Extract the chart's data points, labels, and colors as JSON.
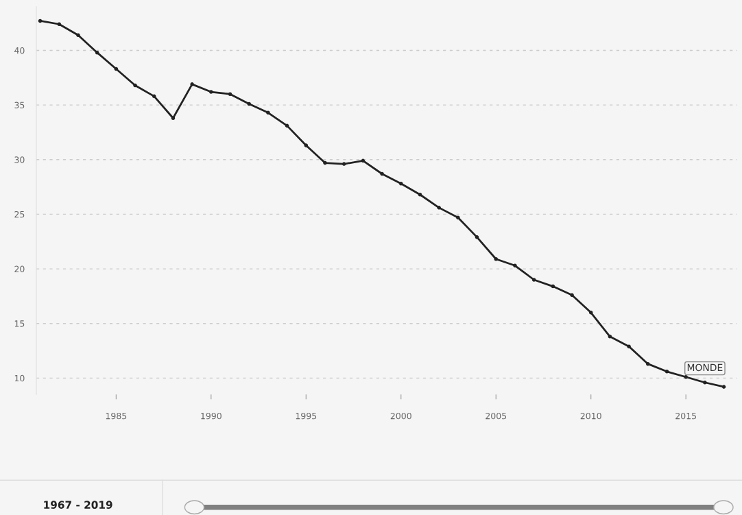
{
  "chart_data": {
    "type": "line",
    "x": [
      1981,
      1982,
      1983,
      1984,
      1985,
      1986,
      1987,
      1988,
      1989,
      1990,
      1991,
      1992,
      1993,
      1994,
      1995,
      1996,
      1997,
      1998,
      1999,
      2000,
      2001,
      2002,
      2003,
      2004,
      2005,
      2006,
      2007,
      2008,
      2009,
      2010,
      2011,
      2012,
      2013,
      2014,
      2015,
      2016,
      2017
    ],
    "series": [
      {
        "color": "#222222",
        "values": [
          42.7,
          42.4,
          41.4,
          39.8,
          38.3,
          36.8,
          35.8,
          33.8,
          36.9,
          36.2,
          36.0,
          35.1,
          34.3,
          33.1,
          31.3,
          29.7,
          29.6,
          29.9,
          28.7,
          27.8,
          26.8,
          25.6,
          24.7,
          22.9,
          20.9,
          20.3,
          19.0,
          18.4,
          17.6,
          16.0,
          13.8,
          12.9,
          11.3,
          10.6,
          10.1,
          9.6,
          9.2
        ]
      }
    ],
    "xlim": [
      1980.8,
      2017.7
    ],
    "ylim": [
      8.5,
      44
    ],
    "xticks": [
      1985,
      1990,
      1995,
      2000,
      2005,
      2010,
      2015
    ],
    "yticks": [
      10,
      15,
      20,
      25,
      30,
      35,
      40
    ],
    "grid": "y",
    "marker": "circle",
    "line_style": "solid",
    "legend": false,
    "annotations": [
      {
        "text": "MONDE",
        "x": 2016,
        "y": 9.6
      },
      "1967 - 2019"
    ]
  }
}
